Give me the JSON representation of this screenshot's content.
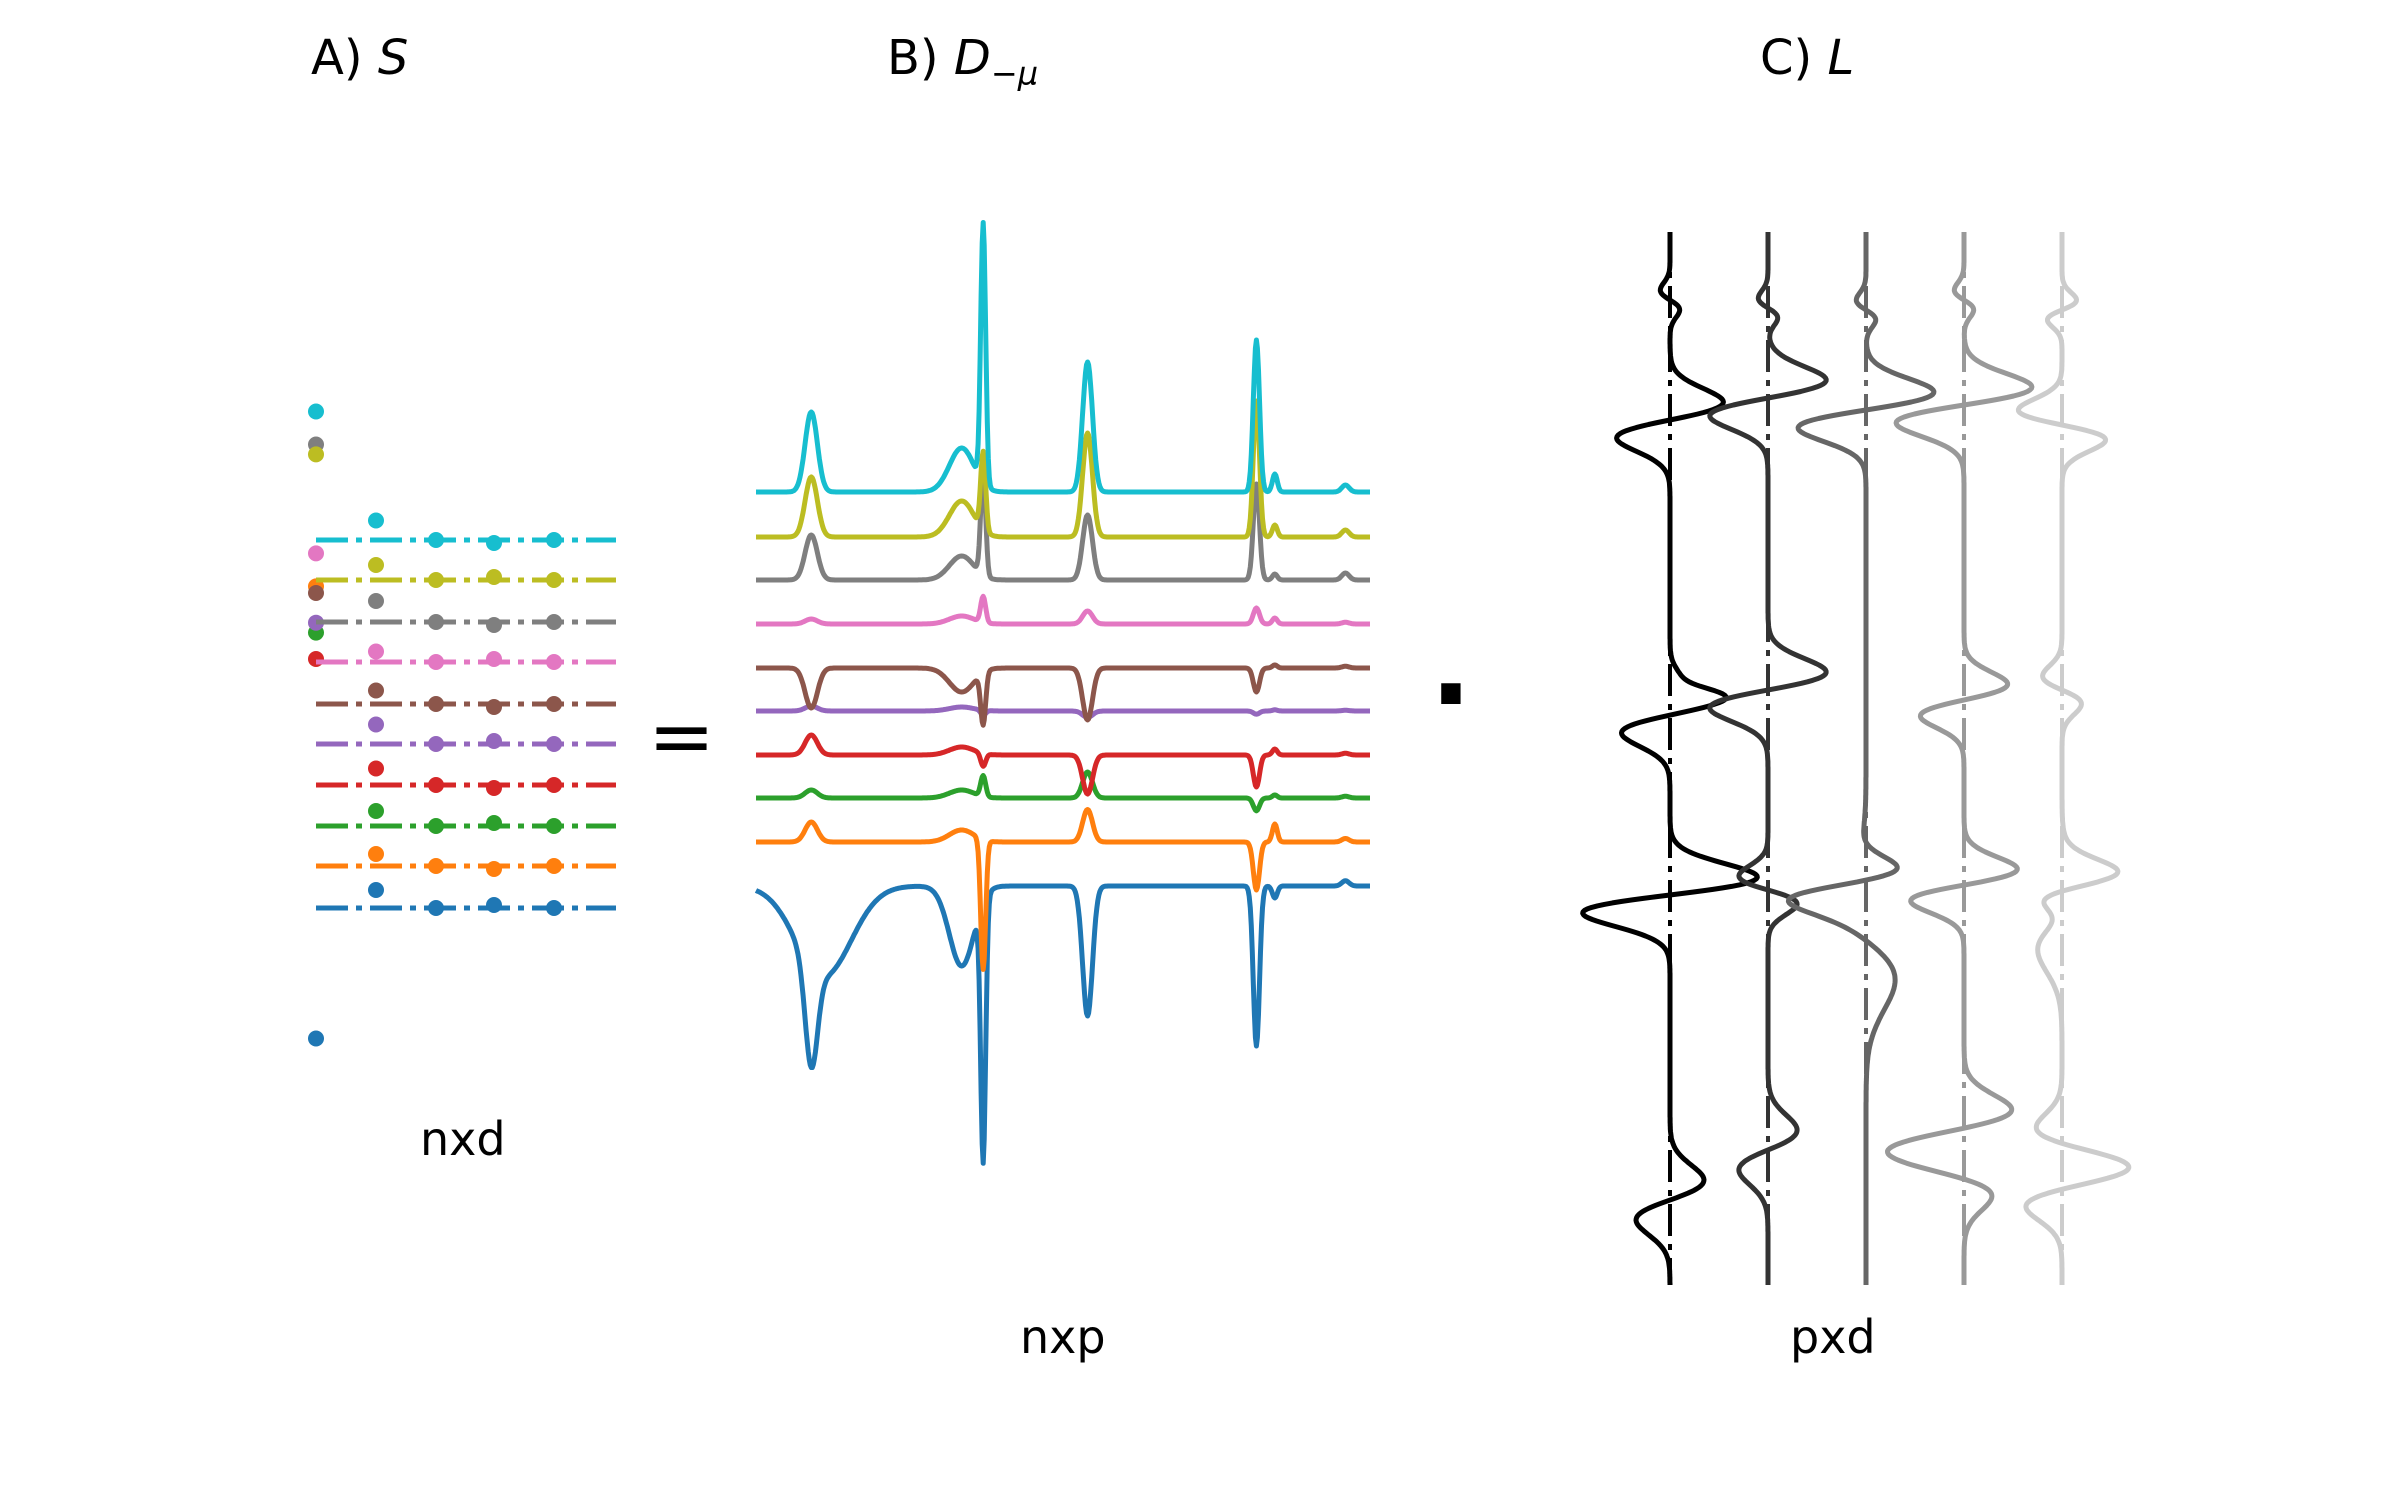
{
  "panels": {
    "a": {
      "prefix": "A) ",
      "symbol": "S",
      "dims": "nxd"
    },
    "b": {
      "prefix": "B) ",
      "symbol": "D",
      "subscript": "−μ",
      "dims": "nxp"
    },
    "c": {
      "prefix": "C) ",
      "symbol": "L",
      "dims": "pxd"
    }
  },
  "operators": {
    "equals": "=",
    "dot": "·"
  },
  "series_colors": [
    "#1f77b4",
    "#ff7f0e",
    "#2ca02c",
    "#d62728",
    "#9467bd",
    "#8c564b",
    "#e377c2",
    "#7f7f7f",
    "#bcbd22",
    "#17becf"
  ],
  "loading_colors": [
    "#000000",
    "#333333",
    "#666666",
    "#999999",
    "#cccccc"
  ],
  "scores_first_column": [
    -0.95,
    0.42,
    0.28,
    0.2,
    0.31,
    0.4,
    0.52,
    0.85,
    0.82,
    0.95
  ],
  "scores_second_column": [
    0.12,
    0.08,
    0.1,
    0.11,
    0.13,
    0.09,
    0.07,
    0.14,
    0.1,
    0.13
  ]
}
